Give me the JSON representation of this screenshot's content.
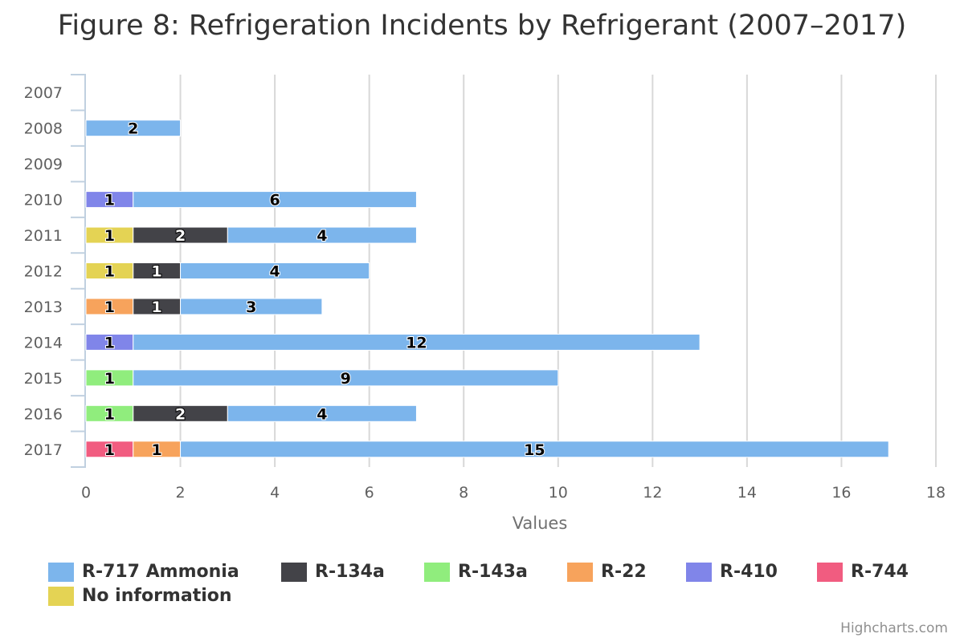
{
  "chart_data": {
    "type": "bar",
    "orientation": "horizontal",
    "stacked": true,
    "title": "Figure 8: Refrigeration Incidents by Refrigerant (2007–2017)",
    "xlabel": "Values",
    "ylabel": "",
    "xlim": [
      0,
      18
    ],
    "xticks": [
      "0",
      "2",
      "4",
      "6",
      "8",
      "10",
      "12",
      "14",
      "16",
      "18"
    ],
    "categories": [
      "2007",
      "2008",
      "2009",
      "2010",
      "2011",
      "2012",
      "2013",
      "2014",
      "2015",
      "2016",
      "2017"
    ],
    "grid": "vertical",
    "legend_position": "bottom",
    "series": [
      {
        "name": "R-717 Ammonia",
        "color": "#7cb5ec",
        "values": [
          0,
          2,
          0,
          6,
          4,
          4,
          3,
          12,
          9,
          4,
          15
        ]
      },
      {
        "name": "R-134a",
        "color": "#434348",
        "values": [
          0,
          0,
          0,
          0,
          2,
          1,
          1,
          0,
          0,
          2,
          0
        ]
      },
      {
        "name": "R-143a",
        "color": "#90ed7d",
        "values": [
          0,
          0,
          0,
          0,
          0,
          0,
          0,
          0,
          1,
          1,
          0
        ]
      },
      {
        "name": "R-22",
        "color": "#f7a35c",
        "values": [
          0,
          0,
          0,
          0,
          0,
          0,
          1,
          0,
          0,
          0,
          1
        ]
      },
      {
        "name": "R-410",
        "color": "#8085e9",
        "values": [
          0,
          0,
          0,
          1,
          0,
          0,
          0,
          1,
          0,
          0,
          0
        ]
      },
      {
        "name": "R-744",
        "color": "#f15c80",
        "values": [
          0,
          0,
          0,
          0,
          0,
          0,
          0,
          0,
          0,
          0,
          1
        ]
      },
      {
        "name": "No information",
        "color": "#e4d354",
        "values": [
          0,
          0,
          0,
          0,
          1,
          1,
          0,
          0,
          0,
          0,
          0
        ]
      }
    ]
  },
  "credits": "Highcharts.com"
}
